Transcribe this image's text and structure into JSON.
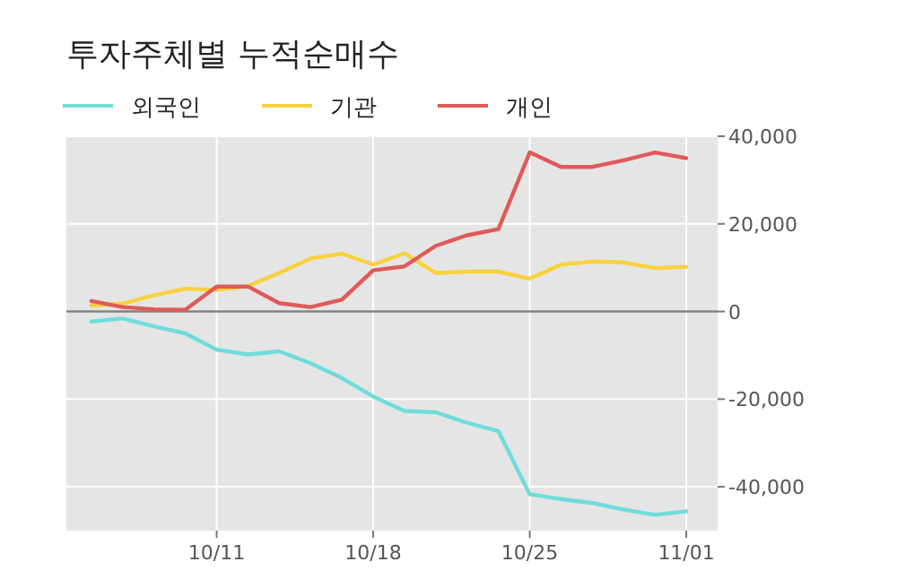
{
  "chart_data": {
    "type": "line",
    "title": "투자주체별 누적순매수",
    "categories": [
      null,
      null,
      null,
      null,
      "10/11",
      null,
      null,
      null,
      null,
      "10/18",
      null,
      null,
      null,
      null,
      "10/25",
      null,
      null,
      null,
      null,
      "11/01"
    ],
    "series": [
      {
        "name": "외국인",
        "color": "#6fdcdc",
        "values": [
          -2300,
          -1600,
          -3400,
          -5000,
          -8700,
          -9800,
          -9100,
          -11800,
          -15200,
          -19400,
          -22700,
          -23000,
          -25400,
          -27300,
          -41700,
          -42800,
          -43700,
          -45200,
          -46400,
          -45600
        ]
      },
      {
        "name": "기관",
        "color": "#f9d23c",
        "values": [
          1400,
          1800,
          3700,
          5200,
          4900,
          5800,
          8800,
          12100,
          13200,
          10700,
          13300,
          8800,
          9100,
          9100,
          7500,
          10700,
          11400,
          11200,
          9900,
          10200
        ]
      },
      {
        "name": "개인",
        "color": "#e05a5a",
        "values": [
          2400,
          1000,
          500,
          400,
          5700,
          5700,
          1900,
          1000,
          2700,
          9400,
          10300,
          15000,
          17400,
          18800,
          36300,
          33000,
          33000,
          34500,
          36300,
          35000
        ]
      }
    ],
    "ylim": [
      -50000,
      40000
    ],
    "yticks": [
      {
        "value": -40000,
        "label": "-40,000"
      },
      {
        "value": -20000,
        "label": "-20,000"
      },
      {
        "value": 0,
        "label": "0"
      },
      {
        "value": 20000,
        "label": "20,000"
      },
      {
        "value": 40000,
        "label": "40,000"
      }
    ],
    "ref_lines": [
      {
        "axis": "y",
        "value": 0,
        "color": "#808080"
      }
    ],
    "grid": true,
    "legend": "top",
    "marker": "none",
    "line_style": "solid"
  }
}
